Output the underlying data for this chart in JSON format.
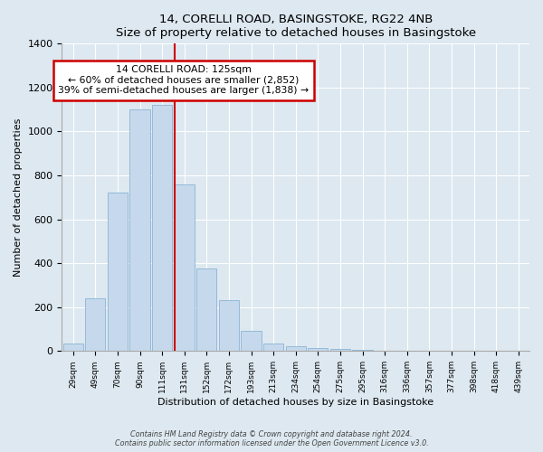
{
  "title": "14, CORELLI ROAD, BASINGSTOKE, RG22 4NB",
  "subtitle": "Size of property relative to detached houses in Basingstoke",
  "xlabel": "Distribution of detached houses by size in Basingstoke",
  "ylabel": "Number of detached properties",
  "bar_labels": [
    "29sqm",
    "49sqm",
    "70sqm",
    "90sqm",
    "111sqm",
    "131sqm",
    "152sqm",
    "172sqm",
    "193sqm",
    "213sqm",
    "234sqm",
    "254sqm",
    "275sqm",
    "295sqm",
    "316sqm",
    "336sqm",
    "357sqm",
    "377sqm",
    "398sqm",
    "418sqm",
    "439sqm"
  ],
  "bar_values": [
    35,
    240,
    720,
    1100,
    1120,
    760,
    375,
    230,
    90,
    35,
    20,
    15,
    10,
    5,
    3,
    2,
    1,
    1,
    0,
    0,
    0
  ],
  "bar_color": "#c6d9ec",
  "bar_edge_color": "#8ab4d4",
  "annotation_title": "14 CORELLI ROAD: 125sqm",
  "annotation_line1": "← 60% of detached houses are smaller (2,852)",
  "annotation_line2": "39% of semi-detached houses are larger (1,838) →",
  "annotation_box_color": "white",
  "annotation_box_edge": "#cc0000",
  "vline_color": "#cc0000",
  "vline_x_index": 5,
  "ylim": [
    0,
    1400
  ],
  "yticks": [
    0,
    200,
    400,
    600,
    800,
    1000,
    1200,
    1400
  ],
  "footer1": "Contains HM Land Registry data © Crown copyright and database right 2024.",
  "footer2": "Contains public sector information licensed under the Open Government Licence v3.0.",
  "bg_color": "#dde8f0",
  "plot_bg_color": "#dde8f0",
  "grid_color": "#ffffff"
}
